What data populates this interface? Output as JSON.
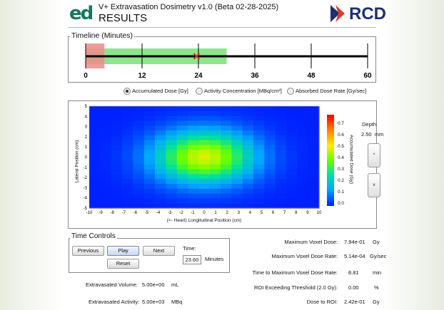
{
  "header": {
    "app_title": "V+ Extravasation Dosimetry v1.0 (Beta 02-28-2025)",
    "page_title": "RESULTS",
    "logo_left": "ed",
    "logo_right": "RCD"
  },
  "timeline": {
    "title": "Timeline (Minutes)",
    "ticks": [
      "0",
      "12",
      "24",
      "36",
      "48",
      "60"
    ],
    "current_minutes": 23.6,
    "red_segment_minutes": [
      0,
      4
    ],
    "green_segment_minutes": [
      0,
      30
    ]
  },
  "view_options": {
    "options": [
      {
        "label": "Accumulated Dose [Gy]",
        "selected": true
      },
      {
        "label": "Activity Concentration [MBq/cm³]",
        "selected": false
      },
      {
        "label": "Absorbed Dose Rate [Gy/sec]",
        "selected": false
      }
    ]
  },
  "plot": {
    "y_label": "Lateral Position (cm)",
    "x_label": "(<- Heart)   Longitudinal Position (cm)",
    "x_ticks": [
      "-10",
      "-9",
      "-8",
      "-7",
      "-6",
      "-5",
      "-4",
      "-3",
      "-2",
      "-1",
      "0",
      "1",
      "2",
      "3",
      "4",
      "5",
      "6",
      "7",
      "8",
      "9",
      "10"
    ],
    "y_ticks": [
      "5",
      "4",
      "3",
      "2",
      "1",
      "0",
      "-1",
      "-2",
      "-3",
      "-4",
      "-5"
    ],
    "colorbar_label": "Accumulated Dose (Gy)",
    "colorbar_ticks": [
      "0.7",
      "0.6",
      "0.5",
      "0.4",
      "0.3",
      "0.2",
      "0.1",
      "0.0"
    ],
    "depth_label": "Depth",
    "depth_value": "2.50",
    "depth_unit": "mm",
    "depth_up": "^",
    "depth_down": "v"
  },
  "time_controls": {
    "title": "Time Controls",
    "previous": "Previous",
    "play": "Play",
    "next": "Next",
    "reset": "Reset",
    "time_label": "Time:",
    "time_value": "23.60",
    "time_unit": "Minutes"
  },
  "stats": {
    "volume_label": "Extravasated Volume:",
    "volume_value": "5.00e+00",
    "volume_unit": "mL",
    "activity_label": "Extravasated Activity:",
    "activity_value": "5.00e+03",
    "activity_unit": "MBq",
    "rows": [
      {
        "label": "Maximum Voxel Dose:",
        "value": "7.94e-01",
        "unit": "Gy"
      },
      {
        "label": "Maximum Voxel Dose Rate:",
        "value": "5.14e-04",
        "unit": "Gy/sec"
      },
      {
        "label": "Time to Maximum Voxel Dose Rate:",
        "value": "8.81",
        "unit": "min"
      },
      {
        "label": "ROI Exceeding Threshold (2.0 Gy):",
        "value": "0.00",
        "unit": "%"
      },
      {
        "label": "Dose to ROI:",
        "value": "2.42e-01",
        "unit": "Gy"
      }
    ]
  },
  "colors": {
    "accent_red": "#d92a1a",
    "rcd_blue": "#1e2f73",
    "timeline_green": "#8ee68a",
    "timeline_red": "#f08a8a"
  }
}
